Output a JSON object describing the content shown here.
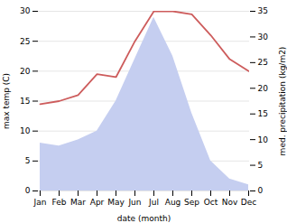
{
  "chart_data": {
    "type": "line",
    "categories": [
      "Jan",
      "Feb",
      "Mar",
      "Apr",
      "May",
      "Jun",
      "Jul",
      "Aug",
      "Sep",
      "Oct",
      "Nov",
      "Dec"
    ],
    "series": [
      {
        "type": "area",
        "color": "#c5cef0",
        "values": [
          8.0,
          7.5,
          8.5,
          10.0,
          15.0,
          22.0,
          29.0,
          22.5,
          13.0,
          5.0,
          2.0,
          1.0
        ]
      },
      {
        "type": "line",
        "color": "#cd5c5c",
        "values": [
          14.5,
          15.0,
          16.0,
          19.5,
          19.0,
          25.0,
          30.0,
          30.0,
          29.5,
          26.0,
          22.0,
          20.0
        ]
      }
    ],
    "xlabel": "date (month)",
    "ylabel": "max temp (C)",
    "y2label": "med. precipitation (kg/m2)",
    "ylim": [
      0,
      30
    ],
    "yticks": [
      0,
      5,
      10,
      15,
      20,
      25,
      30
    ],
    "y2lim": [
      0,
      35
    ],
    "y2ticks": [
      0,
      5,
      10,
      15,
      20,
      25,
      30,
      35
    ],
    "grid": true
  }
}
